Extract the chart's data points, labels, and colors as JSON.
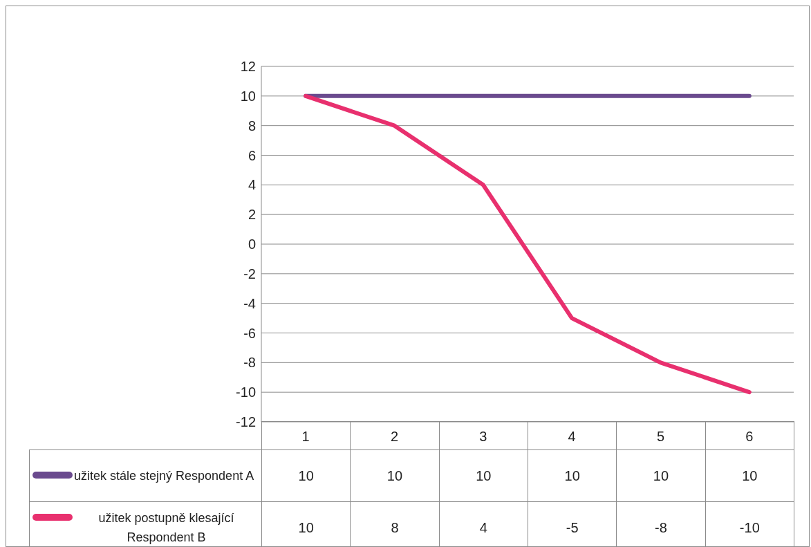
{
  "chart_data": {
    "type": "line",
    "categories": [
      "1",
      "2",
      "3",
      "4",
      "5",
      "6"
    ],
    "series": [
      {
        "name": "užitek stále stejný Respondent A",
        "color": "#6a4a8e",
        "values": [
          10,
          10,
          10,
          10,
          10,
          10
        ]
      },
      {
        "name": "užitek postupně klesající Respondent B",
        "color": "#e8306e",
        "values": [
          10,
          8,
          4,
          -5,
          -8,
          -10
        ]
      }
    ],
    "ylim": [
      -12,
      12
    ],
    "yticks": [
      -12,
      -10,
      -8,
      -6,
      -4,
      -2,
      0,
      2,
      4,
      6,
      8,
      10,
      12
    ],
    "grid": "y",
    "legend": "bottom left",
    "data_labels": true,
    "marker": "none",
    "line_style": "solid"
  }
}
